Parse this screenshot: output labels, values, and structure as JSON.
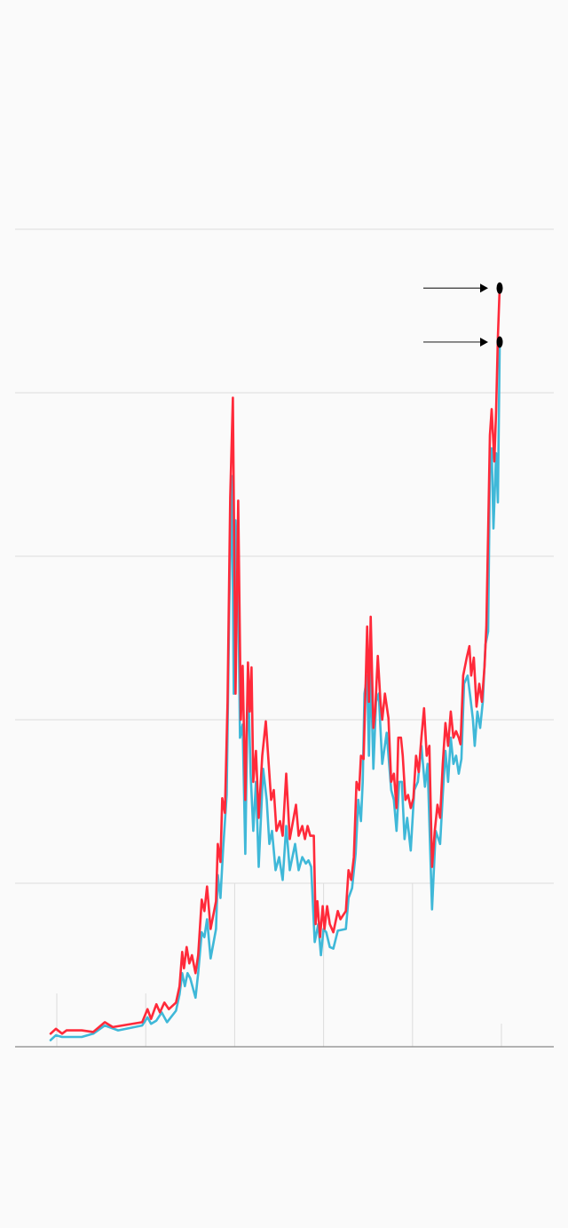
{
  "chart_data": {
    "type": "line",
    "title": "",
    "xlabel": "",
    "ylabel": "",
    "xlim": [
      -0.47,
      5.57
    ],
    "ylim": [
      0,
      5
    ],
    "grid": true,
    "y_gridlines": [
      1,
      2,
      3,
      4,
      5
    ],
    "x_ticks": [
      0,
      1,
      2,
      3,
      4,
      5
    ],
    "legend": "none",
    "annotations": [
      {
        "type": "arrow-marker",
        "series": "red",
        "x": 4.98,
        "y": 4.64
      },
      {
        "type": "arrow-marker",
        "series": "blue",
        "x": 4.98,
        "y": 4.31
      }
    ],
    "series": [
      {
        "name": "red",
        "color": "#ff2a3a",
        "x": [
          -0.07,
          -0.01,
          0.06,
          0.11,
          0.28,
          0.41,
          0.54,
          0.63,
          0.96,
          1.02,
          1.06,
          1.12,
          1.16,
          1.21,
          1.26,
          1.34,
          1.38,
          1.41,
          1.43,
          1.46,
          1.49,
          1.52,
          1.56,
          1.59,
          1.63,
          1.66,
          1.69,
          1.73,
          1.79,
          1.81,
          1.84,
          1.86,
          1.89,
          1.92,
          1.95,
          1.98,
          2.01,
          2.04,
          2.07,
          2.09,
          2.12,
          2.15,
          2.17,
          2.19,
          2.21,
          2.24,
          2.27,
          2.31,
          2.35,
          2.39,
          2.41,
          2.44,
          2.47,
          2.51,
          2.54,
          2.58,
          2.62,
          2.69,
          2.72,
          2.76,
          2.79,
          2.82,
          2.85,
          2.89,
          2.91,
          2.93,
          2.96,
          2.99,
          3.01,
          3.04,
          3.07,
          3.11,
          3.16,
          3.19,
          3.25,
          3.28,
          3.31,
          3.34,
          3.37,
          3.4,
          3.42,
          3.45,
          3.47,
          3.49,
          3.51,
          3.53,
          3.56,
          3.58,
          3.61,
          3.64,
          3.66,
          3.69,
          3.73,
          3.76,
          3.79,
          3.82,
          3.84,
          3.87,
          3.89,
          3.92,
          3.95,
          3.98,
          4.01,
          4.04,
          4.07,
          4.1,
          4.13,
          4.16,
          4.19,
          4.22,
          4.25,
          4.28,
          4.31,
          4.34,
          4.37,
          4.4,
          4.43,
          4.46,
          4.49,
          4.52,
          4.54,
          4.57,
          4.61,
          4.64,
          4.66,
          4.69,
          4.72,
          4.75,
          4.78,
          4.81,
          4.83,
          4.85,
          4.87,
          4.89,
          4.92,
          4.94,
          4.96,
          4.98
        ],
        "values": [
          0.08,
          0.11,
          0.08,
          0.1,
          0.1,
          0.09,
          0.15,
          0.12,
          0.15,
          0.23,
          0.17,
          0.26,
          0.21,
          0.27,
          0.23,
          0.27,
          0.37,
          0.58,
          0.48,
          0.61,
          0.51,
          0.56,
          0.45,
          0.56,
          0.9,
          0.83,
          0.98,
          0.72,
          0.89,
          1.24,
          1.13,
          1.52,
          1.43,
          2.11,
          3.36,
          3.97,
          2.16,
          3.34,
          2.0,
          2.33,
          1.51,
          2.35,
          2.05,
          2.32,
          1.62,
          1.81,
          1.4,
          1.78,
          1.99,
          1.67,
          1.51,
          1.57,
          1.32,
          1.38,
          1.29,
          1.67,
          1.27,
          1.48,
          1.29,
          1.35,
          1.27,
          1.35,
          1.29,
          1.29,
          0.75,
          0.89,
          0.67,
          0.86,
          0.72,
          0.86,
          0.75,
          0.7,
          0.83,
          0.78,
          0.83,
          1.08,
          1.02,
          1.16,
          1.62,
          1.57,
          1.78,
          1.76,
          2.16,
          2.57,
          2.11,
          2.63,
          1.95,
          2.05,
          2.39,
          2.11,
          2.0,
          2.16,
          2.01,
          1.62,
          1.67,
          1.46,
          1.89,
          1.89,
          1.78,
          1.51,
          1.54,
          1.46,
          1.52,
          1.78,
          1.68,
          1.89,
          2.07,
          1.78,
          1.84,
          1.1,
          1.32,
          1.48,
          1.4,
          1.73,
          1.98,
          1.84,
          2.05,
          1.89,
          1.93,
          1.89,
          1.85,
          2.27,
          2.38,
          2.45,
          2.27,
          2.38,
          2.08,
          2.22,
          2.11,
          2.33,
          2.57,
          3.14,
          3.74,
          3.9,
          3.58,
          3.89,
          4.34,
          4.64
        ]
      },
      {
        "name": "blue",
        "color": "#3fb8d8",
        "x": [
          -0.07,
          -0.01,
          0.06,
          0.28,
          0.41,
          0.54,
          0.69,
          0.96,
          1.02,
          1.06,
          1.12,
          1.18,
          1.24,
          1.34,
          1.38,
          1.41,
          1.44,
          1.47,
          1.5,
          1.56,
          1.59,
          1.63,
          1.66,
          1.69,
          1.73,
          1.79,
          1.81,
          1.84,
          1.87,
          1.91,
          1.94,
          1.97,
          1.99,
          2.01,
          2.04,
          2.06,
          2.09,
          2.12,
          2.15,
          2.18,
          2.21,
          2.24,
          2.27,
          2.32,
          2.36,
          2.39,
          2.42,
          2.46,
          2.5,
          2.54,
          2.58,
          2.62,
          2.68,
          2.72,
          2.76,
          2.8,
          2.83,
          2.86,
          2.9,
          2.94,
          2.97,
          3.0,
          3.03,
          3.07,
          3.11,
          3.16,
          3.25,
          3.28,
          3.32,
          3.36,
          3.39,
          3.42,
          3.44,
          3.46,
          3.49,
          3.51,
          3.53,
          3.56,
          3.59,
          3.62,
          3.66,
          3.71,
          3.76,
          3.79,
          3.82,
          3.85,
          3.88,
          3.91,
          3.94,
          3.98,
          4.02,
          4.06,
          4.1,
          4.14,
          4.17,
          4.22,
          4.26,
          4.31,
          4.34,
          4.37,
          4.4,
          4.43,
          4.46,
          4.49,
          4.52,
          4.55,
          4.58,
          4.62,
          4.65,
          4.68,
          4.7,
          4.73,
          4.76,
          4.79,
          4.82,
          4.85,
          4.87,
          4.89,
          4.91,
          4.94,
          4.96,
          4.98
        ],
        "values": [
          0.04,
          0.07,
          0.06,
          0.06,
          0.08,
          0.13,
          0.1,
          0.13,
          0.18,
          0.14,
          0.16,
          0.21,
          0.15,
          0.22,
          0.32,
          0.45,
          0.37,
          0.45,
          0.42,
          0.3,
          0.45,
          0.7,
          0.67,
          0.78,
          0.54,
          0.72,
          1.05,
          0.91,
          1.21,
          1.54,
          2.71,
          3.49,
          2.16,
          3.22,
          2.84,
          1.89,
          1.97,
          1.18,
          2.27,
          1.67,
          1.32,
          1.62,
          1.1,
          1.7,
          1.51,
          1.24,
          1.32,
          1.08,
          1.16,
          1.02,
          1.35,
          1.08,
          1.24,
          1.08,
          1.16,
          1.12,
          1.14,
          1.1,
          0.64,
          0.75,
          0.56,
          0.72,
          0.7,
          0.61,
          0.6,
          0.71,
          0.72,
          0.91,
          0.97,
          1.18,
          1.51,
          1.38,
          1.62,
          2.16,
          2.27,
          1.78,
          2.33,
          1.7,
          2.11,
          2.16,
          1.73,
          1.92,
          1.57,
          1.51,
          1.32,
          1.62,
          1.62,
          1.27,
          1.4,
          1.2,
          1.57,
          1.62,
          1.84,
          1.59,
          1.73,
          0.84,
          1.32,
          1.24,
          1.54,
          1.81,
          1.62,
          1.89,
          1.73,
          1.78,
          1.67,
          1.76,
          2.22,
          2.27,
          2.14,
          2.0,
          1.84,
          2.05,
          1.95,
          2.11,
          2.46,
          2.54,
          3.52,
          3.66,
          3.17,
          3.63,
          3.33,
          4.28
        ]
      }
    ]
  }
}
